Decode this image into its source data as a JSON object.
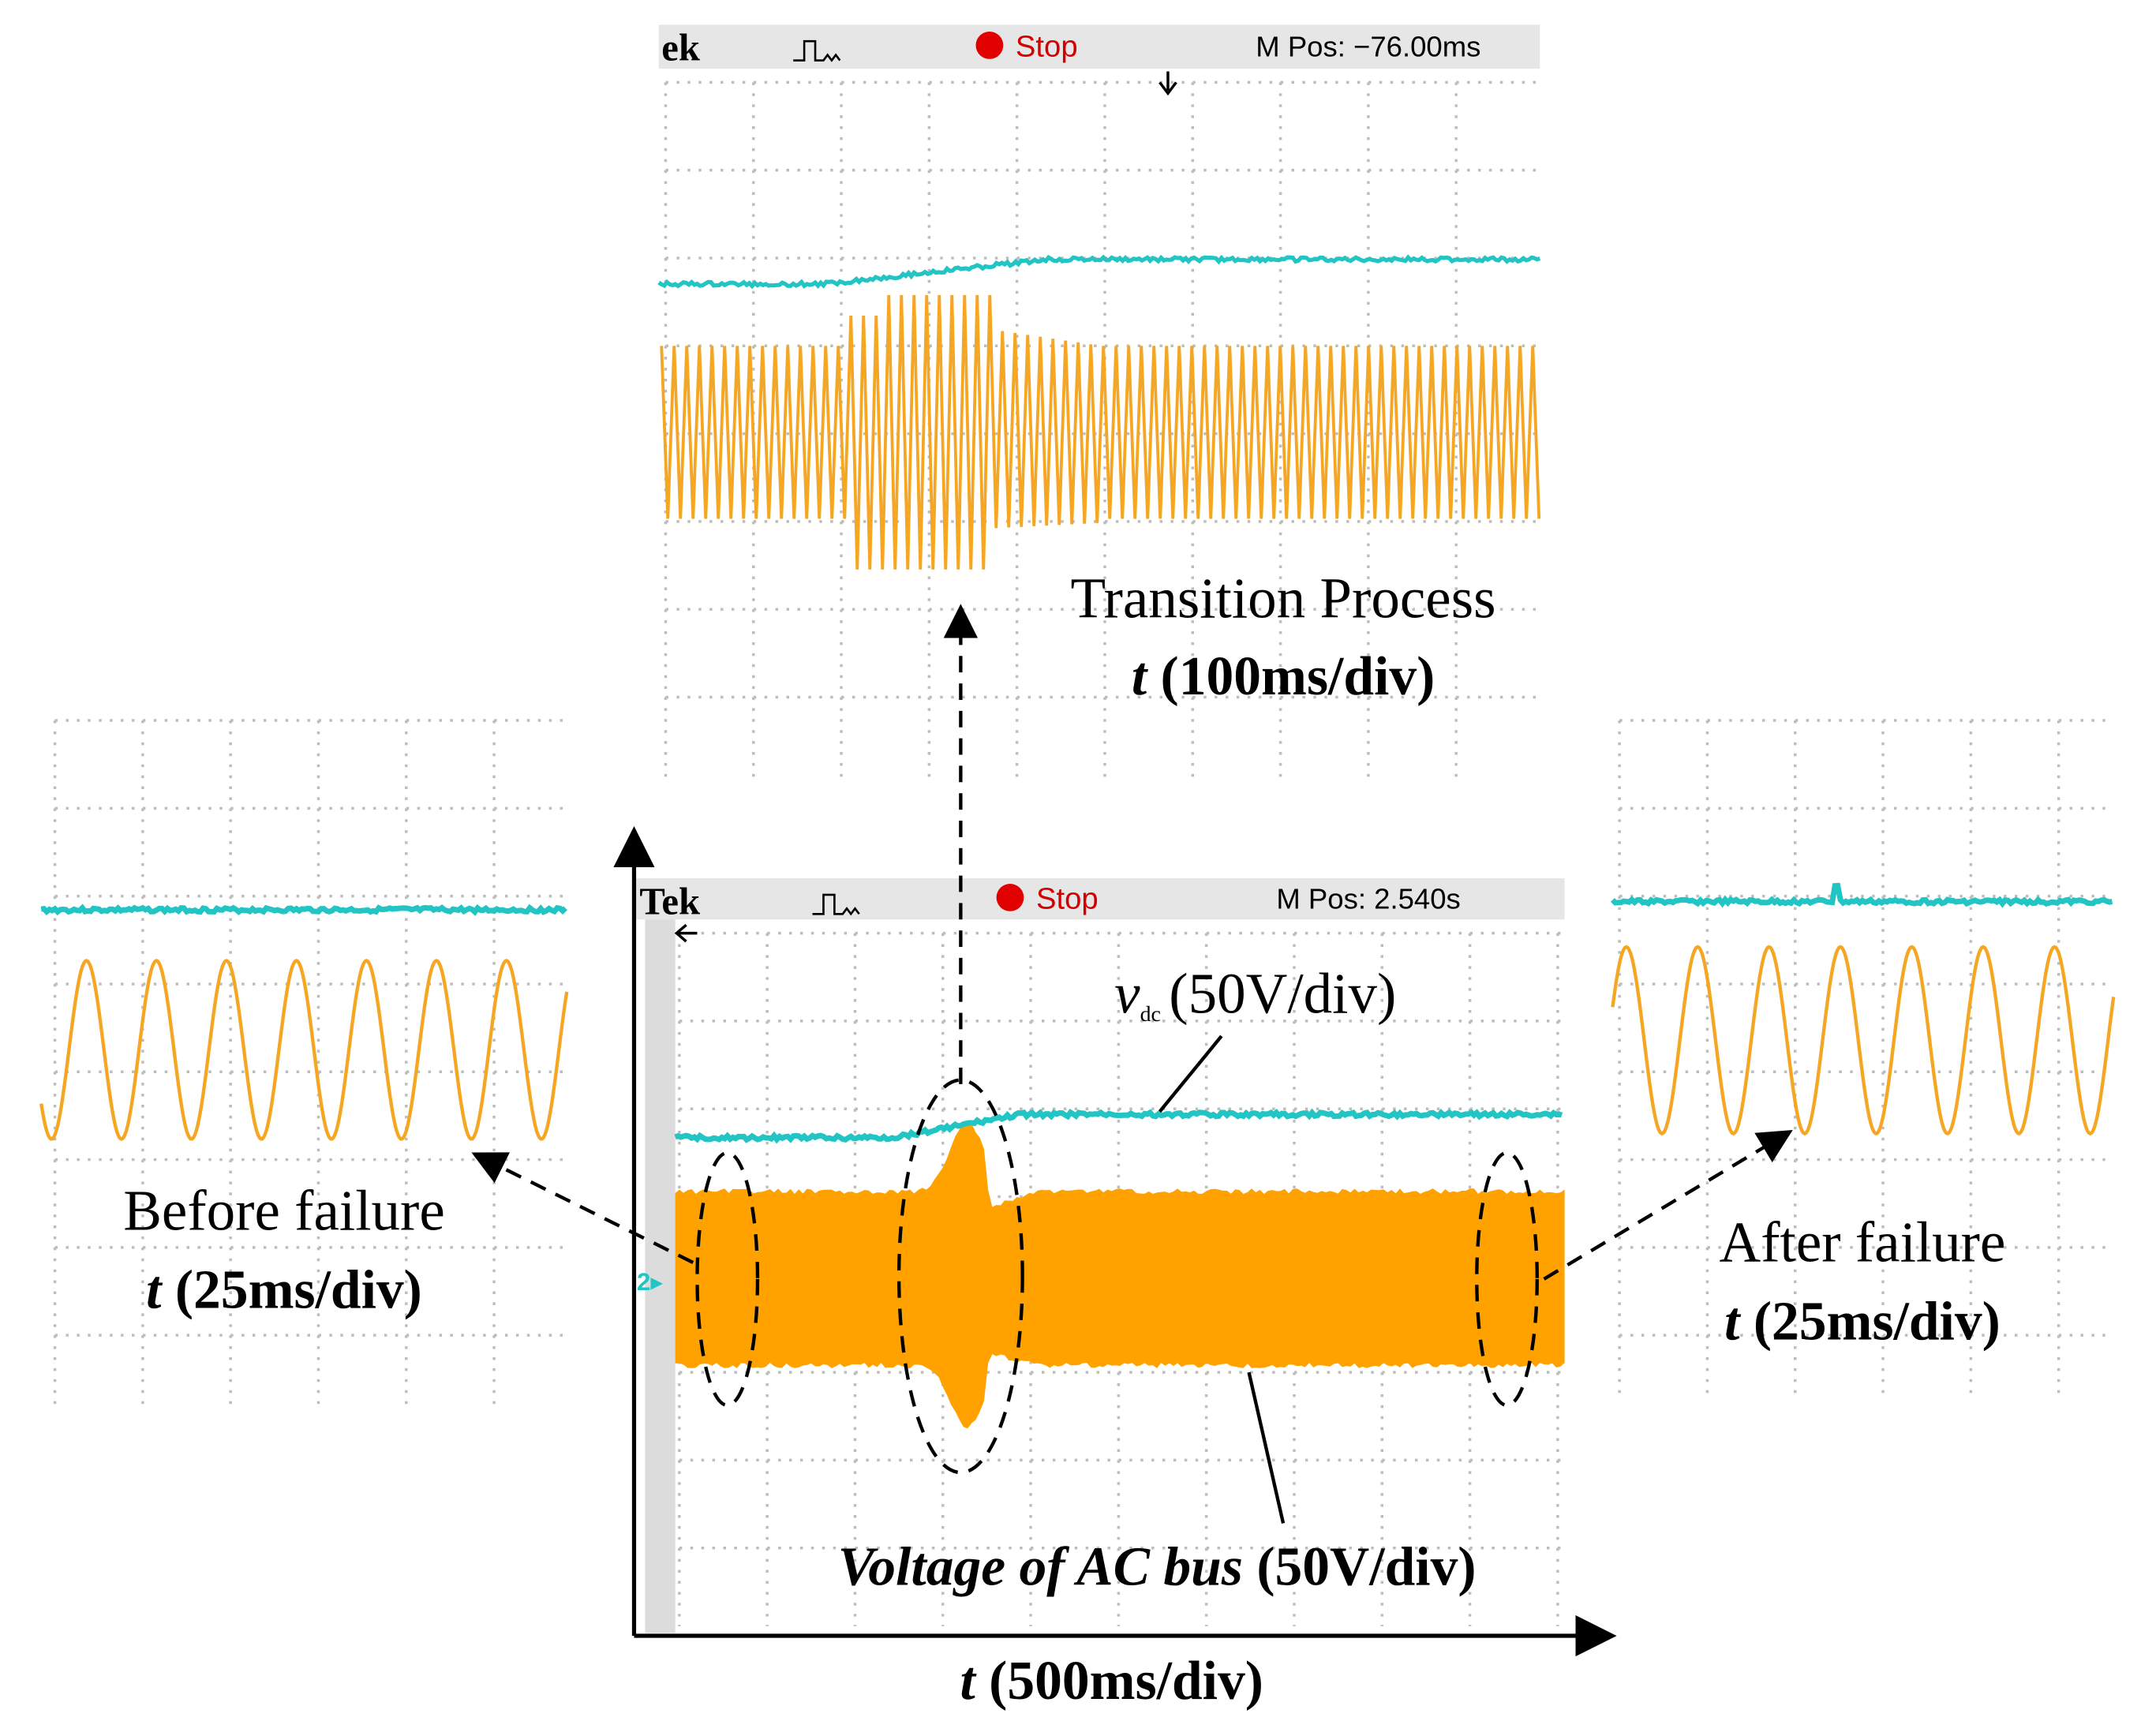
{
  "top_scope": {
    "brand": "ek",
    "status": "Stop",
    "position": "M Pos: −76.00ms"
  },
  "top_caption": {
    "title": "Transition Process",
    "time_symbol": "t",
    "time_scale": "(100ms/div)"
  },
  "main_scope": {
    "brand": "Tek",
    "status": "Stop",
    "position": "M Pos: 2.540s",
    "channel": "2"
  },
  "dc_label": {
    "symbol": "v",
    "subscript": "dc",
    "scale": "(50V/div)"
  },
  "ac_label": {
    "name": "Voltage of AC bus",
    "scale": "(50V/div)"
  },
  "x_axis": {
    "symbol": "t",
    "scale": "(500ms/div)"
  },
  "left_caption": {
    "title": "Before failure",
    "time_symbol": "t",
    "time_scale": "(25ms/div)"
  },
  "right_caption": {
    "title": "After failure",
    "time_symbol": "t",
    "time_scale": "(25ms/div)"
  }
}
